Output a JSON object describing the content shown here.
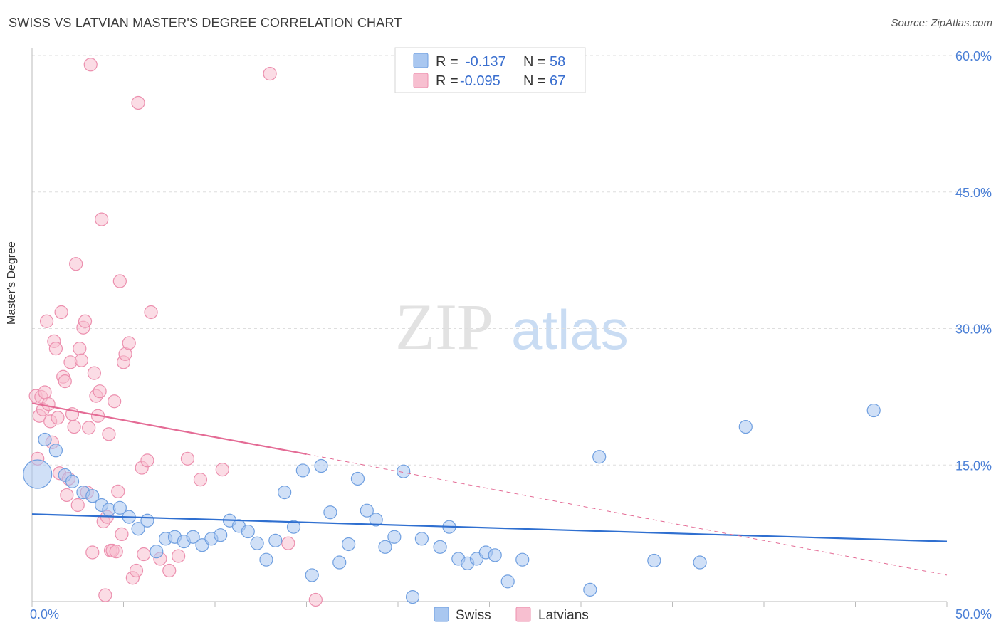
{
  "title": "SWISS VS LATVIAN MASTER'S DEGREE CORRELATION CHART",
  "source": "Source: ZipAtlas.com",
  "watermark": {
    "part1": "ZIP",
    "part2": "atlas"
  },
  "chart_data": {
    "type": "scatter",
    "title": "SWISS VS LATVIAN MASTER'S DEGREE CORRELATION CHART",
    "ylabel": "Master's Degree",
    "xlim": [
      0,
      50
    ],
    "ylim": [
      0,
      60
    ],
    "x_tick_labels": [
      "0.0%",
      "50.0%"
    ],
    "y_ticks": [
      15,
      30,
      45,
      60
    ],
    "y_tick_labels": [
      "15.0%",
      "30.0%",
      "45.0%",
      "60.0%"
    ],
    "grid": true,
    "legend_position": "top-center",
    "legend": [
      {
        "name": "Swiss",
        "r_label": "R =",
        "r_value": "-0.137",
        "n_label": "N =",
        "n_value": "58",
        "color": "#a9c7f0",
        "stroke": "#6f9fe0"
      },
      {
        "name": "Latvians",
        "r_label": "R =",
        "r_value": "-0.095",
        "n_label": "N =",
        "n_value": "67",
        "color": "#f7bfd0",
        "stroke": "#ec8fae"
      }
    ],
    "series": [
      {
        "name": "Swiss",
        "color": "#a9c7f0",
        "stroke": "#6f9fe0",
        "trend": {
          "x": [
            0,
            50
          ],
          "y": [
            9.6,
            6.6
          ],
          "color": "#2f6fd0"
        },
        "points": [
          [
            0.3,
            14.0
          ],
          [
            0.7,
            17.8
          ],
          [
            1.3,
            16.6
          ],
          [
            1.8,
            13.9
          ],
          [
            2.2,
            13.2
          ],
          [
            2.8,
            12.0
          ],
          [
            3.3,
            11.6
          ],
          [
            3.8,
            10.6
          ],
          [
            4.2,
            10.1
          ],
          [
            4.8,
            10.3
          ],
          [
            5.3,
            9.3
          ],
          [
            5.8,
            8.0
          ],
          [
            6.3,
            8.9
          ],
          [
            6.8,
            5.5
          ],
          [
            7.3,
            6.9
          ],
          [
            7.8,
            7.1
          ],
          [
            8.3,
            6.6
          ],
          [
            8.8,
            7.1
          ],
          [
            9.3,
            6.2
          ],
          [
            9.8,
            6.9
          ],
          [
            10.3,
            7.3
          ],
          [
            10.8,
            8.9
          ],
          [
            11.3,
            8.3
          ],
          [
            11.8,
            7.7
          ],
          [
            12.3,
            6.4
          ],
          [
            12.8,
            4.6
          ],
          [
            13.3,
            6.7
          ],
          [
            13.8,
            12.0
          ],
          [
            14.3,
            8.2
          ],
          [
            14.8,
            14.4
          ],
          [
            15.3,
            2.9
          ],
          [
            15.8,
            14.9
          ],
          [
            16.3,
            9.8
          ],
          [
            16.8,
            4.3
          ],
          [
            17.3,
            6.3
          ],
          [
            17.8,
            13.5
          ],
          [
            18.3,
            10.0
          ],
          [
            18.8,
            9.0
          ],
          [
            19.3,
            6.0
          ],
          [
            19.8,
            7.1
          ],
          [
            20.3,
            14.3
          ],
          [
            20.8,
            0.5
          ],
          [
            21.3,
            6.9
          ],
          [
            22.3,
            6.0
          ],
          [
            22.8,
            8.2
          ],
          [
            23.3,
            4.7
          ],
          [
            23.8,
            4.2
          ],
          [
            24.3,
            4.7
          ],
          [
            24.8,
            5.4
          ],
          [
            25.3,
            5.1
          ],
          [
            26.0,
            2.2
          ],
          [
            26.8,
            4.6
          ],
          [
            30.5,
            1.3
          ],
          [
            31.0,
            15.9
          ],
          [
            34.0,
            4.5
          ],
          [
            36.5,
            4.3
          ],
          [
            39.0,
            19.2
          ],
          [
            46.0,
            21.0
          ]
        ]
      },
      {
        "name": "Latvians",
        "color": "#f7bfd0",
        "stroke": "#ec8fae",
        "trend": {
          "x": [
            0,
            15
          ],
          "y": [
            21.8,
            16.2
          ],
          "dashed_x": [
            15,
            50
          ],
          "dashed_y": [
            16.2,
            2.9
          ],
          "color": "#e46b95"
        },
        "points": [
          [
            0.2,
            22.6
          ],
          [
            0.3,
            15.7
          ],
          [
            0.4,
            20.4
          ],
          [
            0.5,
            22.5
          ],
          [
            0.6,
            21.1
          ],
          [
            0.7,
            23.0
          ],
          [
            0.8,
            30.8
          ],
          [
            0.9,
            21.7
          ],
          [
            1.0,
            19.8
          ],
          [
            1.1,
            17.5
          ],
          [
            1.2,
            28.6
          ],
          [
            1.3,
            27.8
          ],
          [
            1.4,
            20.2
          ],
          [
            1.5,
            14.1
          ],
          [
            1.6,
            31.8
          ],
          [
            1.7,
            24.7
          ],
          [
            1.8,
            24.2
          ],
          [
            1.9,
            11.7
          ],
          [
            2.0,
            13.5
          ],
          [
            2.1,
            26.3
          ],
          [
            2.2,
            20.6
          ],
          [
            2.3,
            19.2
          ],
          [
            2.4,
            37.1
          ],
          [
            2.5,
            10.6
          ],
          [
            2.6,
            27.8
          ],
          [
            2.7,
            26.5
          ],
          [
            2.8,
            30.1
          ],
          [
            2.9,
            30.8
          ],
          [
            3.0,
            12.0
          ],
          [
            3.1,
            19.1
          ],
          [
            3.2,
            59.0
          ],
          [
            3.3,
            5.4
          ],
          [
            3.4,
            25.1
          ],
          [
            3.5,
            22.6
          ],
          [
            3.6,
            20.4
          ],
          [
            3.7,
            23.1
          ],
          [
            3.8,
            42.0
          ],
          [
            3.9,
            8.8
          ],
          [
            4.0,
            0.7
          ],
          [
            4.1,
            9.3
          ],
          [
            4.2,
            18.4
          ],
          [
            4.3,
            5.6
          ],
          [
            4.4,
            5.6
          ],
          [
            4.5,
            22.0
          ],
          [
            4.6,
            5.5
          ],
          [
            4.7,
            12.1
          ],
          [
            4.8,
            35.2
          ],
          [
            4.9,
            7.4
          ],
          [
            5.0,
            26.3
          ],
          [
            5.1,
            27.2
          ],
          [
            5.3,
            28.4
          ],
          [
            5.5,
            2.6
          ],
          [
            5.7,
            3.4
          ],
          [
            5.8,
            54.8
          ],
          [
            6.0,
            14.7
          ],
          [
            6.1,
            5.2
          ],
          [
            6.3,
            15.5
          ],
          [
            6.5,
            31.8
          ],
          [
            7.0,
            4.7
          ],
          [
            7.5,
            3.4
          ],
          [
            8.0,
            5.0
          ],
          [
            8.5,
            15.7
          ],
          [
            9.2,
            13.4
          ],
          [
            10.4,
            14.5
          ],
          [
            13.0,
            58.0
          ],
          [
            14.0,
            6.4
          ],
          [
            15.5,
            0.2
          ]
        ]
      }
    ]
  },
  "bottom_legend": [
    {
      "label": "Swiss"
    },
    {
      "label": "Latvians"
    }
  ]
}
